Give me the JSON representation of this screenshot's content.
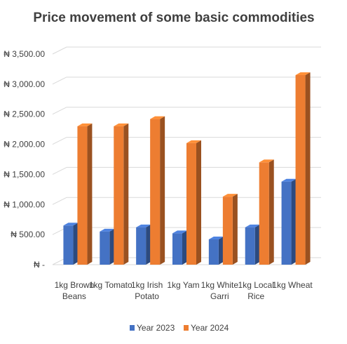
{
  "chart_data": {
    "type": "bar",
    "title": "Price movement of some basic commodities",
    "xlabel": "",
    "ylabel": "",
    "categories": [
      [
        "1kg Brown",
        "Beans"
      ],
      [
        "1kg Tomato"
      ],
      [
        "1kg Irish",
        "Potato"
      ],
      [
        "1kg Yam"
      ],
      [
        "1kg White",
        "Garri"
      ],
      [
        "1kg Local",
        "Rice"
      ],
      [
        "1kg Wheat"
      ]
    ],
    "series": [
      {
        "name": "Year 2023",
        "color": "#4472C4",
        "values": [
          650,
          550,
          620,
          520,
          420,
          620,
          1380
        ]
      },
      {
        "name": "Year 2024",
        "color": "#ED7D31",
        "values": [
          2300,
          2300,
          2420,
          2020,
          1130,
          1700,
          3150
        ]
      }
    ],
    "ylim": [
      0,
      3500
    ],
    "ytick_values": [
      0,
      500,
      1000,
      1500,
      2000,
      2500,
      3000,
      3500
    ],
    "ytick_labels": [
      "₦ -",
      "₦ 500.00",
      "₦ 1,000.00",
      "₦ 1,500.00",
      "₦ 2,000.00",
      "₦ 2,500.00",
      "₦ 3,000.00",
      "₦ 3,500.00"
    ],
    "grid": true,
    "legend_position": "bottom",
    "style": "3d-bar"
  }
}
